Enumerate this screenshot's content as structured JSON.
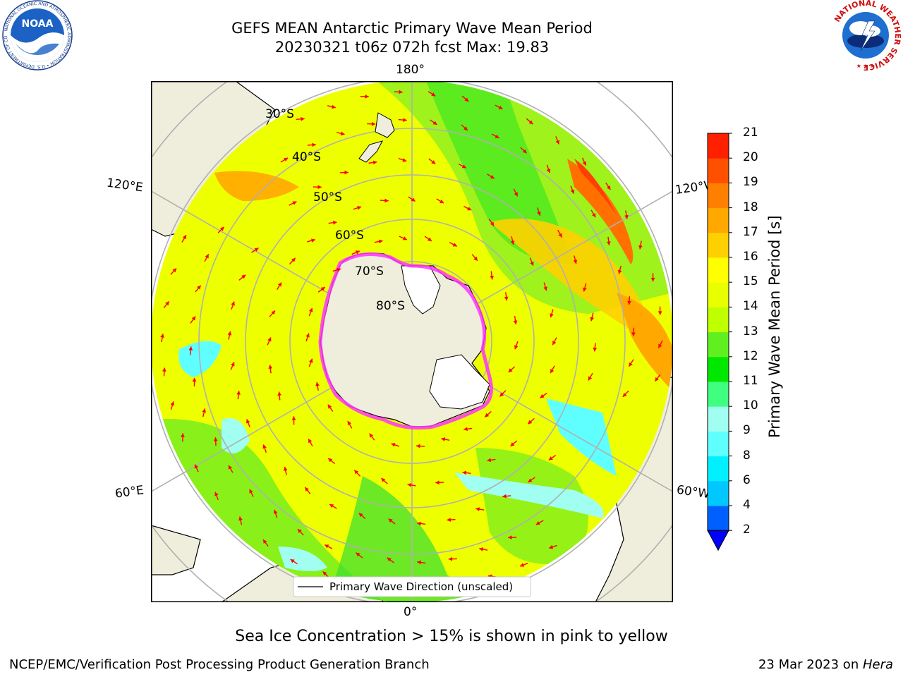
{
  "header": {
    "title_line1": "GEFS MEAN Antarctic Primary Wave Mean Period",
    "title_line2": "20230321 t06z 072h fcst   Max: 19.83"
  },
  "logos": {
    "left": "noaa-logo",
    "left_text": "NOAA",
    "left_ring": "NATIONAL OCEANIC AND ATMOSPHERIC ADMINISTRATION • U.S. DEPARTMENT OF COMMERCE",
    "right": "nws-logo",
    "right_ring": "NATIONAL WEATHER SERVICE"
  },
  "map": {
    "projection": "south-polar-stereographic",
    "lon_labels": {
      "top": "180°",
      "bottom": "0°",
      "upper_left": "120°E",
      "upper_right": "120°W",
      "lower_left": "60°E",
      "lower_right": "60°W"
    },
    "lat_labels": [
      "30°S",
      "40°S",
      "50°S",
      "60°S",
      "70°S",
      "80°S"
    ],
    "legend": "Primary Wave Direction (unscaled)",
    "colors": {
      "land": "#efeedc",
      "ice_edge": "#ff33ff",
      "arrow": "#ff0000",
      "grid": "#b0b0b0"
    }
  },
  "colorbar": {
    "title": "Primary Wave Mean Period [s]",
    "ticks": [
      "2",
      "4",
      "6",
      "8",
      "9",
      "10",
      "11",
      "12",
      "13",
      "14",
      "15",
      "16",
      "17",
      "18",
      "19",
      "20",
      "21"
    ],
    "colors": [
      "#0060ff",
      "#00c8ff",
      "#00f0ff",
      "#60ffff",
      "#a0fff0",
      "#40ff80",
      "#00e800",
      "#60f020",
      "#c0ff00",
      "#e8ff00",
      "#ffff00",
      "#ffd000",
      "#ffa800",
      "#ff8000",
      "#ff5000",
      "#ff2000"
    ],
    "extend_color": "#0000ff"
  },
  "note": "Sea Ice Concentration > 15% is shown in pink to yellow",
  "footer": {
    "left": "NCEP/EMC/Verification Post Processing Product Generation Branch",
    "date": "23 Mar 2023 on ",
    "machine": "Hera"
  }
}
